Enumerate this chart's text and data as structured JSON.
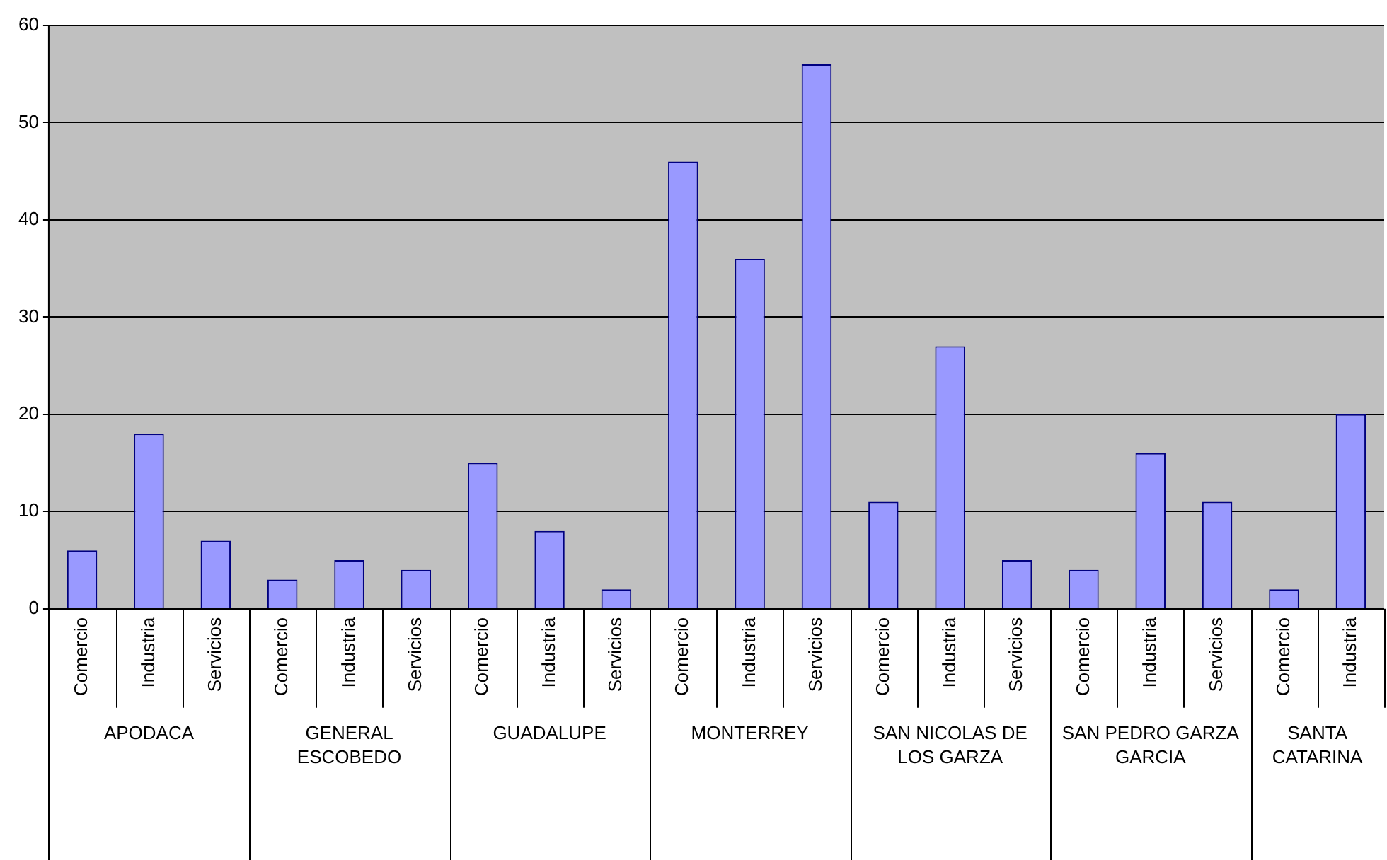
{
  "chart_data": {
    "type": "bar",
    "categories": [
      "Comercio",
      "Industria",
      "Servicios",
      "Comercio",
      "Industria",
      "Servicios",
      "Comercio",
      "Industria",
      "Servicios",
      "Comercio",
      "Industria",
      "Servicios",
      "Comercio",
      "Industria",
      "Servicios",
      "Comercio",
      "Industria",
      "Servicios",
      "Comercio",
      "Industria"
    ],
    "values": [
      6,
      18,
      7,
      3,
      5,
      4,
      15,
      8,
      2,
      46,
      36,
      56,
      11,
      27,
      5,
      4,
      16,
      11,
      2,
      20
    ],
    "color": "#9999ff",
    "annotations": [
      "APODACA",
      "GENERAL ESCOBEDO",
      "GUADALUPE",
      "MONTERREY",
      "SAN NICOLAS DE LOS GARZA",
      "SAN PEDRO GARZA GARCIA",
      "SANTA CATARINA"
    ],
    "ylim": [
      0,
      60
    ],
    "yticks": [
      0,
      10,
      20,
      30,
      40,
      50,
      60
    ],
    "grid": "y",
    "legend": false
  }
}
